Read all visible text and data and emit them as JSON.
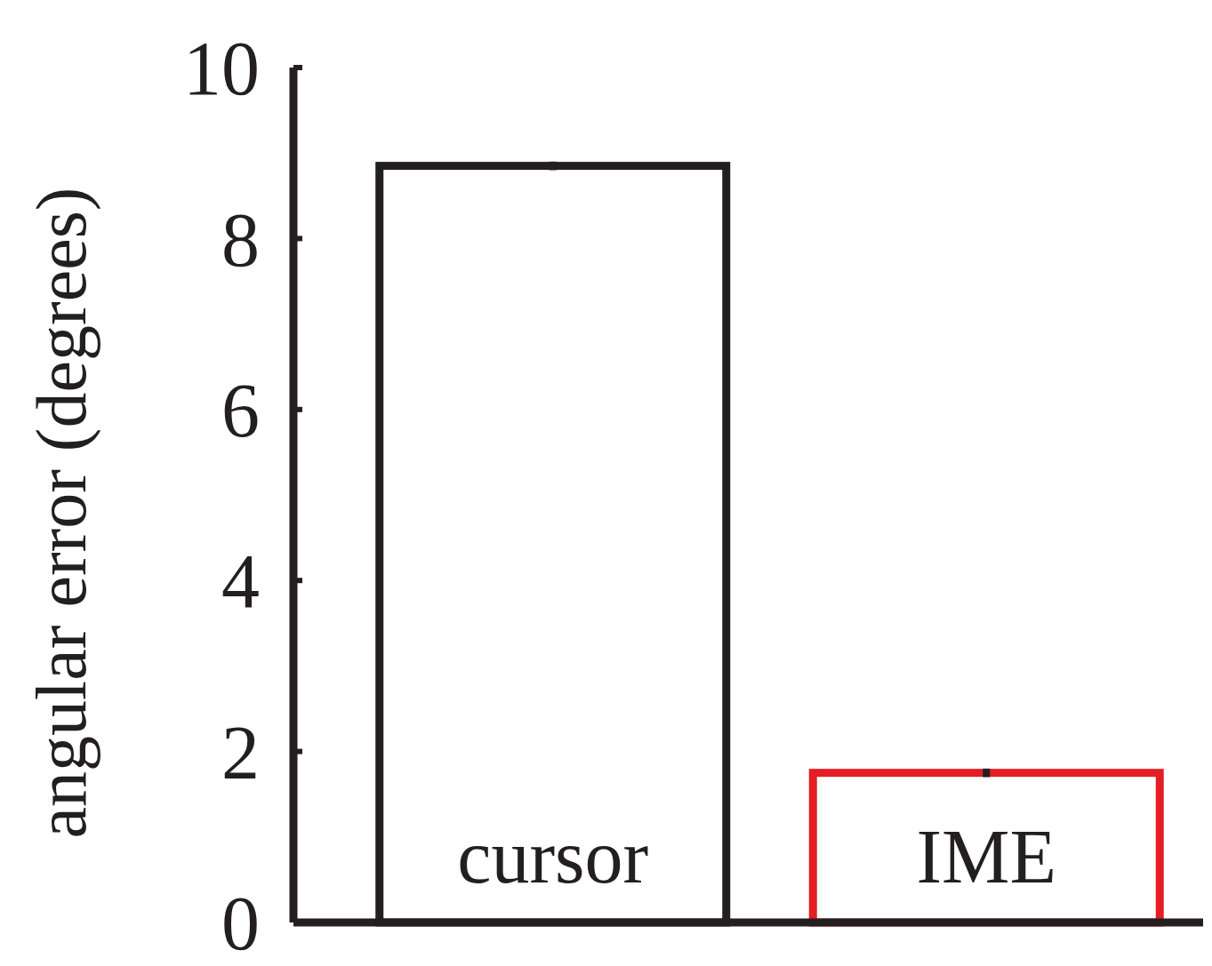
{
  "chart_data": {
    "type": "bar",
    "ylabel": "angular error (degrees)",
    "categories": [
      "cursor",
      "IME"
    ],
    "values": [
      8.85,
      1.75
    ],
    "errors": [
      0.05,
      0.05
    ],
    "colors": [
      "#231f20",
      "#e31e24"
    ],
    "ylim": [
      0,
      10
    ],
    "yticks": [
      0,
      2,
      4,
      6,
      8,
      10
    ],
    "grid": false
  }
}
